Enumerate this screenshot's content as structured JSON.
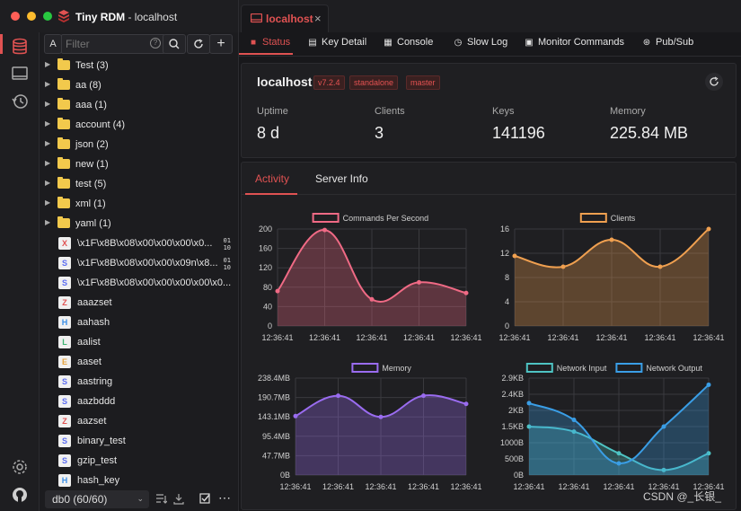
{
  "app": {
    "name": "Tiny RDM",
    "subtitle": "- localhost"
  },
  "toolbar": {
    "filter_type": "A",
    "filter_placeholder": "Filter"
  },
  "tree": [
    {
      "label": "Test (3)"
    },
    {
      "label": "aa (8)"
    },
    {
      "label": "aaa (1)"
    },
    {
      "label": "account (4)"
    },
    {
      "label": "json (2)"
    },
    {
      "label": "new (1)"
    },
    {
      "label": "test (5)"
    },
    {
      "label": "xml (1)"
    },
    {
      "label": "yaml (1)"
    }
  ],
  "keys": [
    {
      "type": "X",
      "color": "#e05252",
      "label": "\\x1F\\x8B\\x08\\x00\\x00\\x00\\x0...",
      "binary": true
    },
    {
      "type": "S",
      "color": "#5b6cf0",
      "label": "\\x1F\\x8B\\x08\\x00\\x00\\x09n\\x8...",
      "binary": true
    },
    {
      "type": "S",
      "color": "#5b6cf0",
      "label": "\\x1F\\x8B\\x08\\x00\\x00\\x00\\x00\\x0...",
      "binary": false
    },
    {
      "type": "Z",
      "color": "#e05252",
      "label": "aaazset",
      "binary": false
    },
    {
      "type": "H",
      "color": "#3a8ee6",
      "label": "aahash",
      "binary": false
    },
    {
      "type": "L",
      "color": "#3cb371",
      "label": "aalist",
      "binary": false
    },
    {
      "type": "E",
      "color": "#e6a23c",
      "label": "aaset",
      "binary": false
    },
    {
      "type": "S",
      "color": "#5b6cf0",
      "label": "aastring",
      "binary": false
    },
    {
      "type": "S",
      "color": "#5b6cf0",
      "label": "aazbddd",
      "binary": false
    },
    {
      "type": "Z",
      "color": "#e05252",
      "label": "aazset",
      "binary": false
    },
    {
      "type": "S",
      "color": "#5b6cf0",
      "label": "binary_test",
      "binary": false
    },
    {
      "type": "S",
      "color": "#5b6cf0",
      "label": "gzip_test",
      "binary": false
    },
    {
      "type": "H",
      "color": "#3a8ee6",
      "label": "hash_key",
      "binary": false
    }
  ],
  "binary_mark": {
    "top": "01",
    "bottom": "10"
  },
  "db_select": "db0 (60/60)",
  "tab": {
    "label": "localhost"
  },
  "subtabs": [
    {
      "label": "Status",
      "active": true
    },
    {
      "label": "Key Detail"
    },
    {
      "label": "Console"
    },
    {
      "label": "Slow Log"
    },
    {
      "label": "Monitor Commands"
    },
    {
      "label": "Pub/Sub"
    }
  ],
  "server": {
    "name": "localhost",
    "tags": [
      "v7.2.4",
      "standalone",
      "master"
    ],
    "stats": [
      {
        "label": "Uptime",
        "value": "8 d"
      },
      {
        "label": "Clients",
        "value": "3"
      },
      {
        "label": "Keys",
        "value": "141196"
      },
      {
        "label": "Memory",
        "value": "225.84 MB"
      }
    ]
  },
  "activity_tabs": [
    {
      "label": "Activity",
      "active": true
    },
    {
      "label": "Server Info"
    }
  ],
  "colors": {
    "accent": "#e05252",
    "pink": "#f06a85",
    "orange": "#f0a050",
    "purple": "#9a6cf0",
    "teal": "#4ec3c3",
    "blue": "#3a9ee6"
  },
  "chart_data": [
    {
      "type": "line",
      "title": "",
      "categories": [
        "12:36:41",
        "12:36:41",
        "12:36:41",
        "12:36:41",
        "12:36:41"
      ],
      "series": [
        {
          "name": "Commands Per Second",
          "values": [
            72,
            198,
            55,
            90,
            68
          ]
        }
      ],
      "yticks": [
        "0",
        "40",
        "80",
        "120",
        "160",
        "200"
      ],
      "ylim": [
        0,
        200
      ],
      "color_key": "pink"
    },
    {
      "type": "line",
      "title": "",
      "categories": [
        "12:36:41",
        "12:36:41",
        "12:36:41",
        "12:36:41",
        "12:36:41"
      ],
      "series": [
        {
          "name": "Clients",
          "values": [
            13,
            11,
            16,
            11,
            18
          ]
        }
      ],
      "yticks": [
        "0",
        "4",
        "8",
        "12",
        "16"
      ],
      "ylim": [
        0,
        18
      ],
      "color_key": "orange"
    },
    {
      "type": "line",
      "title": "",
      "categories": [
        "12:36:41",
        "12:36:41",
        "12:36:41",
        "12:36:41",
        "12:36:41"
      ],
      "series": [
        {
          "name": "Memory",
          "values": [
            145,
            195,
            143,
            195,
            175
          ]
        }
      ],
      "yticks": [
        "0B",
        "47.7MB",
        "95.4MB",
        "143.1MB",
        "190.7MB",
        "238.4MB"
      ],
      "ylim": [
        0,
        238.4
      ],
      "color_key": "purple"
    },
    {
      "type": "line",
      "title": "",
      "categories": [
        "12:36:41",
        "12:36:41",
        "12:36:41",
        "12:36:41",
        "12:36:41"
      ],
      "series": [
        {
          "name": "Network Input",
          "values": [
            1450,
            1300,
            650,
            150,
            650
          ],
          "color_key": "teal"
        },
        {
          "name": "Network Output",
          "values": [
            2150,
            1650,
            350,
            1450,
            2700
          ],
          "color_key": "blue"
        }
      ],
      "yticks": [
        "0B",
        "500B",
        "1000B",
        "1.5KB",
        "2KB",
        "2.4KB",
        "2.9KB"
      ],
      "ylim": [
        0,
        2900
      ]
    }
  ],
  "watermark": "CSDN @_长银_"
}
